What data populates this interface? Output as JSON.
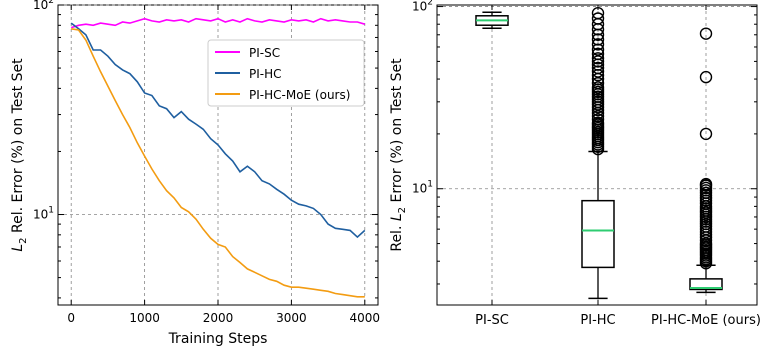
{
  "chart_data": [
    {
      "type": "line",
      "xlabel": "Training Steps",
      "ylabel_main": "L",
      "ylabel_sub": "2",
      "ylabel_rest": " Rel. Error (%) on Test Set",
      "yscale": "log",
      "xlim": [
        -180,
        4180
      ],
      "ylim": [
        3.7,
        100
      ],
      "x_ticks": [
        0,
        1000,
        2000,
        3000,
        4000
      ],
      "x_tick_labels": [
        "0",
        "1000",
        "2000",
        "3000",
        "4000"
      ],
      "y_ticks": [
        10,
        100
      ],
      "y_tick_labels": [
        {
          "base": "10",
          "exp": "1"
        },
        {
          "base": "10",
          "exp": "2"
        }
      ],
      "grid": true,
      "legend_position": "upper right",
      "series": [
        {
          "name": "PI-SC",
          "color": "#ff00ff",
          "points": [
            [
              0,
              78
            ],
            [
              100,
              80
            ],
            [
              200,
              81
            ],
            [
              300,
              80
            ],
            [
              400,
              82
            ],
            [
              500,
              81
            ],
            [
              600,
              80
            ],
            [
              700,
              83
            ],
            [
              800,
              82
            ],
            [
              900,
              84
            ],
            [
              1000,
              86
            ],
            [
              1100,
              84
            ],
            [
              1200,
              83
            ],
            [
              1300,
              85
            ],
            [
              1400,
              84
            ],
            [
              1500,
              85
            ],
            [
              1600,
              83
            ],
            [
              1700,
              86
            ],
            [
              1800,
              85
            ],
            [
              1900,
              84
            ],
            [
              2000,
              86
            ],
            [
              2100,
              83
            ],
            [
              2200,
              85
            ],
            [
              2300,
              83
            ],
            [
              2400,
              86
            ],
            [
              2500,
              84
            ],
            [
              2600,
              83
            ],
            [
              2700,
              85
            ],
            [
              2800,
              84
            ],
            [
              2900,
              83
            ],
            [
              3000,
              85
            ],
            [
              3100,
              84
            ],
            [
              3200,
              85
            ],
            [
              3300,
              83
            ],
            [
              3400,
              86
            ],
            [
              3500,
              84
            ],
            [
              3600,
              85
            ],
            [
              3700,
              84
            ],
            [
              3800,
              83
            ],
            [
              3900,
              83
            ],
            [
              4000,
              81
            ]
          ]
        },
        {
          "name": "PI-HC",
          "color": "#1f5fa0",
          "points": [
            [
              0,
              82
            ],
            [
              100,
              77
            ],
            [
              200,
              72
            ],
            [
              300,
              61
            ],
            [
              400,
              61
            ],
            [
              500,
              57
            ],
            [
              600,
              52
            ],
            [
              700,
              49
            ],
            [
              800,
              47
            ],
            [
              900,
              43
            ],
            [
              1000,
              38
            ],
            [
              1100,
              37
            ],
            [
              1200,
              33
            ],
            [
              1300,
              32
            ],
            [
              1400,
              29
            ],
            [
              1500,
              31
            ],
            [
              1600,
              28.5
            ],
            [
              1700,
              27
            ],
            [
              1800,
              25.5
            ],
            [
              1900,
              23
            ],
            [
              2000,
              21.5
            ],
            [
              2100,
              19.5
            ],
            [
              2200,
              18
            ],
            [
              2300,
              16
            ],
            [
              2400,
              17
            ],
            [
              2500,
              16
            ],
            [
              2600,
              14.5
            ],
            [
              2700,
              14
            ],
            [
              2800,
              13.2
            ],
            [
              2900,
              12.5
            ],
            [
              3000,
              11.7
            ],
            [
              3100,
              11.2
            ],
            [
              3200,
              11
            ],
            [
              3300,
              10.7
            ],
            [
              3400,
              10
            ],
            [
              3500,
              9
            ],
            [
              3600,
              8.6
            ],
            [
              3700,
              8.5
            ],
            [
              3800,
              8.4
            ],
            [
              3900,
              7.8
            ],
            [
              4000,
              8.4
            ]
          ]
        },
        {
          "name": "PI-HC-MoE (ours)",
          "color": "#f39c12",
          "points": [
            [
              0,
              77
            ],
            [
              100,
              76
            ],
            [
              200,
              68
            ],
            [
              300,
              57
            ],
            [
              400,
              48
            ],
            [
              500,
              41
            ],
            [
              600,
              35
            ],
            [
              700,
              30
            ],
            [
              800,
              26
            ],
            [
              900,
              22
            ],
            [
              1000,
              19
            ],
            [
              1100,
              16.5
            ],
            [
              1200,
              14.5
            ],
            [
              1300,
              13
            ],
            [
              1400,
              12
            ],
            [
              1500,
              10.8
            ],
            [
              1600,
              10.3
            ],
            [
              1700,
              9.5
            ],
            [
              1800,
              8.5
            ],
            [
              1900,
              7.7
            ],
            [
              2000,
              7.2
            ],
            [
              2100,
              7
            ],
            [
              2200,
              6.3
            ],
            [
              2300,
              5.9
            ],
            [
              2400,
              5.5
            ],
            [
              2500,
              5.3
            ],
            [
              2600,
              5.1
            ],
            [
              2700,
              4.9
            ],
            [
              2800,
              4.8
            ],
            [
              2900,
              4.6
            ],
            [
              3000,
              4.5
            ],
            [
              3100,
              4.5
            ],
            [
              3200,
              4.45
            ],
            [
              3300,
              4.4
            ],
            [
              3400,
              4.35
            ],
            [
              3500,
              4.3
            ],
            [
              3600,
              4.2
            ],
            [
              3700,
              4.15
            ],
            [
              3800,
              4.1
            ],
            [
              3900,
              4.05
            ],
            [
              4000,
              4.05
            ]
          ]
        }
      ]
    },
    {
      "type": "box",
      "ylabel_main": "Rel. ",
      "ylabel_L": "L",
      "ylabel_sub": "2",
      "ylabel_rest": " Error (%) on Test Set",
      "yscale": "log",
      "ylim": [
        2.3,
        102
      ],
      "y_ticks": [
        10,
        100
      ],
      "y_tick_labels": [
        {
          "base": "10",
          "exp": "1"
        },
        {
          "base": "10",
          "exp": "2"
        }
      ],
      "grid": true,
      "categories": [
        "PI-SC",
        "PI-HC",
        "PI-HC-MoE (ours)"
      ],
      "median_color": "#2ecc71",
      "boxes": [
        {
          "whisker_low": 76,
          "q1": 79,
          "median": 84,
          "q3": 89,
          "whisker_high": 93,
          "outliers": []
        },
        {
          "whisker_low": 2.5,
          "q1": 3.7,
          "median": 5.9,
          "q3": 8.6,
          "whisker_high": 16,
          "outliers": [
            16.5,
            17,
            17.5,
            18,
            18.5,
            19,
            19.5,
            20,
            20.5,
            21,
            21.5,
            22,
            22.5,
            23,
            24,
            25,
            26,
            27,
            28,
            29,
            30,
            31,
            32,
            33,
            34,
            35,
            36,
            38,
            40,
            42,
            44,
            46,
            48,
            50,
            52,
            55,
            58,
            62,
            66,
            70,
            75,
            80,
            86,
            92
          ]
        },
        {
          "whisker_low": 2.7,
          "q1": 2.8,
          "median": 2.85,
          "q3": 3.2,
          "whisker_high": 3.8,
          "outliers": [
            3.9,
            4,
            4.1,
            4.2,
            4.3,
            4.4,
            4.5,
            4.6,
            4.7,
            4.8,
            4.9,
            5,
            5.2,
            5.4,
            5.6,
            5.8,
            6,
            6.2,
            6.4,
            6.6,
            6.8,
            7,
            7.2,
            7.4,
            7.6,
            7.8,
            8,
            8.3,
            8.6,
            8.9,
            9.2,
            9.5,
            9.8,
            10.1,
            10.4,
            10.6,
            20,
            41,
            71
          ]
        }
      ]
    }
  ]
}
